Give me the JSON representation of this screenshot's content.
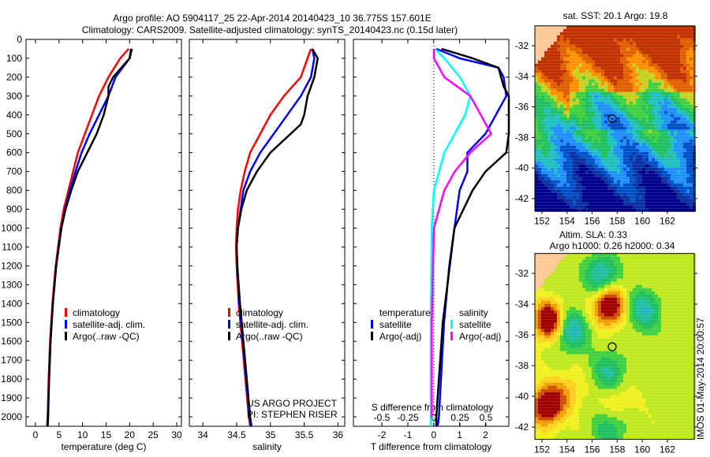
{
  "title": {
    "line1": "Argo profile: AO 5904117_25 22-Apr-2014 20140423_10 36.775S 157.601E",
    "line2": "Climatology: CARS2009. Satellite-adjusted climatology: synTS_20140423.nc (0.15d later)"
  },
  "colors": {
    "climatology": "#ff0000",
    "satellite": "#0000ff",
    "argo": "#000000",
    "sal_satellite": "#00ffff",
    "sal_argo": "#ff00ff"
  },
  "chart_data": [
    {
      "type": "line",
      "name": "temperature",
      "xlabel": "temperature (deg C)",
      "ylabel": "",
      "xlim": [
        -2,
        31
      ],
      "ylim": [
        2050,
        0
      ],
      "xticks": [
        0,
        5,
        10,
        15,
        20,
        25,
        30
      ],
      "yticks": [
        0,
        100,
        200,
        300,
        400,
        500,
        600,
        700,
        800,
        900,
        1000,
        1100,
        1200,
        1300,
        1400,
        1500,
        1600,
        1700,
        1800,
        1900,
        2000
      ],
      "legend": [
        "climatology",
        "satellite-adj. clim.",
        "Argo(..raw -QC)"
      ],
      "series": [
        {
          "name": "climatology",
          "color": "#ff0000",
          "depth": [
            50,
            100,
            200,
            300,
            400,
            500,
            600,
            700,
            800,
            900,
            1000,
            1200,
            1400,
            1600,
            1800,
            2000,
            2050
          ],
          "values": [
            19.8,
            18,
            15.5,
            13.5,
            12,
            10.5,
            9,
            8,
            7,
            6,
            5.3,
            4.3,
            3.6,
            3.1,
            2.8,
            2.6,
            2.5
          ]
        },
        {
          "name": "satellite-adj. clim.",
          "color": "#0000ff",
          "depth": [
            50,
            100,
            200,
            300,
            400,
            500,
            600,
            700,
            800,
            900,
            1000,
            1200,
            1400,
            1600,
            1800,
            2000,
            2050
          ],
          "values": [
            20.5,
            20,
            17,
            15.5,
            13.5,
            11.5,
            9.8,
            8.5,
            7.3,
            6.3,
            5.5,
            4.4,
            3.7,
            3.2,
            2.9,
            2.6,
            2.5
          ]
        },
        {
          "name": "Argo(..raw -QC)",
          "color": "#000000",
          "depth": [
            50,
            100,
            200,
            250,
            300,
            400,
            500,
            600,
            700,
            800,
            900,
            1000,
            1200,
            1400,
            1600,
            1800,
            2000,
            2050
          ],
          "values": [
            20.3,
            20,
            16.5,
            15.5,
            15.5,
            14.5,
            13,
            11,
            9,
            7.6,
            6.4,
            5.5,
            4.4,
            3.7,
            3.2,
            2.9,
            2.7,
            2.6
          ]
        }
      ]
    },
    {
      "type": "line",
      "name": "salinity",
      "xlabel": "salinity",
      "xlim": [
        33.8,
        36.1
      ],
      "ylim": [
        2050,
        0
      ],
      "xticks": [
        34,
        34.5,
        35,
        35.5,
        36
      ],
      "xticklabels": [
        "34",
        "34.5",
        "35",
        "35.5",
        "36"
      ],
      "legend": [
        "climatology",
        "satellite-adj. clim.",
        "Argo(..raw -QC)"
      ],
      "annotation": [
        "US ARGO PROJECT",
        "PI: STEPHEN RISER"
      ],
      "series": [
        {
          "name": "climatology",
          "color": "#ff0000",
          "depth": [
            50,
            100,
            200,
            300,
            400,
            500,
            600,
            700,
            800,
            900,
            1000,
            1100,
            1200,
            1400,
            1600,
            1800,
            2000,
            2050
          ],
          "values": [
            35.6,
            35.55,
            35.45,
            35.2,
            35.0,
            34.85,
            34.7,
            34.62,
            34.56,
            34.52,
            34.5,
            34.49,
            34.5,
            34.53,
            34.58,
            34.63,
            34.68,
            34.7
          ]
        },
        {
          "name": "satellite-adj. clim.",
          "color": "#0000ff",
          "depth": [
            50,
            100,
            200,
            300,
            400,
            500,
            600,
            700,
            800,
            1000,
            1100,
            1200,
            1400,
            1600,
            1800,
            2000,
            2050
          ],
          "values": [
            35.62,
            35.65,
            35.6,
            35.45,
            35.25,
            35.05,
            34.85,
            34.7,
            34.6,
            34.52,
            34.5,
            34.51,
            34.54,
            34.59,
            34.64,
            34.69,
            34.71
          ]
        },
        {
          "name": "Argo(..raw -QC)",
          "color": "#000000",
          "depth": [
            50,
            100,
            200,
            300,
            400,
            450,
            500,
            600,
            700,
            800,
            900,
            1000,
            1100,
            1200,
            1400,
            1600,
            1800,
            2000,
            2050
          ],
          "values": [
            35.62,
            35.7,
            35.65,
            35.55,
            35.5,
            35.45,
            35.3,
            35.0,
            34.8,
            34.65,
            34.57,
            34.52,
            34.5,
            34.51,
            34.55,
            34.6,
            34.65,
            34.7,
            34.72
          ]
        }
      ]
    },
    {
      "type": "line",
      "name": "differences",
      "xlabel": "T difference from climatology",
      "x2label": "S difference from climatology",
      "xlim": [
        -3.1,
        2.9
      ],
      "x2lim": [
        -0.55,
        0.45
      ],
      "ylim": [
        2050,
        0
      ],
      "xticks": [
        -2,
        -1,
        0,
        1,
        2
      ],
      "x2ticks": [
        -0.5,
        -0.25,
        0,
        0.25,
        0.5
      ],
      "x2ticklabels": [
        "-0.5",
        "-0.25",
        "0",
        "0.25",
        "0.5"
      ],
      "legend_temperature": {
        "title": "temperature",
        "items": [
          "satellite",
          "Argo(-adj)"
        ]
      },
      "legend_salinity": {
        "title": "salinity",
        "items": [
          "satellite",
          "Argo(-adj)"
        ]
      },
      "series": [
        {
          "name": "T satellite",
          "axis": "T",
          "color": "#0000ff",
          "depth": [
            50,
            100,
            150,
            200,
            300,
            400,
            500,
            600,
            700,
            800,
            1000,
            1200,
            1500,
            2000,
            2050
          ],
          "values": [
            0.1,
            1,
            2.5,
            2.7,
            2.8,
            2.4,
            2.0,
            1.3,
            1.3,
            1.0,
            0.8,
            0.6,
            0.4,
            0.2,
            0.15
          ]
        },
        {
          "name": "T Argo(-adj)",
          "axis": "T",
          "color": "#000000",
          "depth": [
            50,
            100,
            150,
            250,
            300,
            500,
            600,
            700,
            800,
            1000,
            1500,
            2000,
            2050
          ],
          "values": [
            0.3,
            1.5,
            2.5,
            2.7,
            2.9,
            2.9,
            2.8,
            2.0,
            1.5,
            0.8,
            0.35,
            0.1,
            0.1
          ]
        },
        {
          "name": "S satellite",
          "axis": "S",
          "color": "#00ffff",
          "depth": [
            50,
            100,
            200,
            300,
            400,
            500,
            600,
            800,
            1000,
            1500,
            2000,
            2050
          ],
          "values": [
            0.01,
            0.1,
            0.25,
            0.35,
            0.3,
            0.2,
            0.1,
            0.0,
            -0.02,
            -0.03,
            -0.03,
            -0.03
          ]
        },
        {
          "name": "S Argo(-adj)",
          "axis": "S",
          "color": "#ff00ff",
          "depth": [
            50,
            100,
            200,
            300,
            400,
            500,
            600,
            700,
            800,
            1000,
            1500,
            2000
          ],
          "values": [
            0,
            0,
            0.1,
            0.35,
            0.45,
            0.55,
            0.35,
            0.2,
            0.1,
            0.0,
            -0.02,
            -0.02
          ]
        }
      ]
    }
  ],
  "maps": {
    "sst": {
      "title": "sat. SST: 20.1  Argo: 19.8",
      "lonticks": [
        "152",
        "154",
        "156",
        "158",
        "160",
        "162"
      ],
      "latticks": [
        "-32",
        "-34",
        "-36",
        "-38",
        "-40",
        "-42"
      ]
    },
    "sla": {
      "title1": "Altim. SLA: 0.33",
      "title2": "Argo h1000: 0.26 h2000: 0.34",
      "lonticks": [
        "152",
        "154",
        "156",
        "158",
        "160",
        "162"
      ],
      "latticks": [
        "-32",
        "-34",
        "-36",
        "-38",
        "-40",
        "-42"
      ]
    },
    "float_position": {
      "lon": 157.6,
      "lat": -36.775
    },
    "side_label": "IMOS 01-May-2014 20:00:57"
  }
}
